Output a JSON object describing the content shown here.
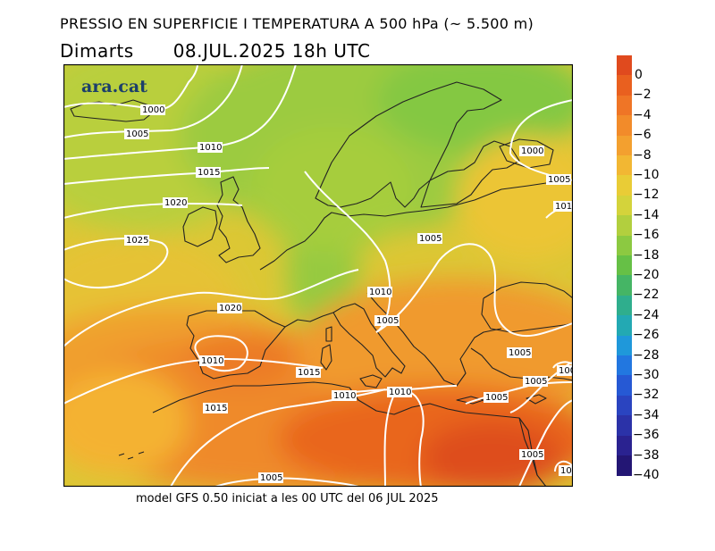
{
  "header": {
    "title": "PRESSIO EN SUPERFICIE I TEMPERATURA A 500 hPa (~ 5.500 m)",
    "day": "Dimarts",
    "datetime": "08.JUL.2025 18h UTC"
  },
  "logo": "ara.cat",
  "footer": "model GFS 0.50 iniciat a les 00 UTC del 06 JUL 2025",
  "legend": {
    "unit_levels": [
      {
        "label": "0",
        "color": "#e04a1e"
      },
      {
        "label": "−2",
        "color": "#e9601f"
      },
      {
        "label": "−4",
        "color": "#ef7526"
      },
      {
        "label": "−6",
        "color": "#f28b2a"
      },
      {
        "label": "−8",
        "color": "#f3a02f"
      },
      {
        "label": "−10",
        "color": "#f2b733"
      },
      {
        "label": "−12",
        "color": "#e9cc36"
      },
      {
        "label": "−14",
        "color": "#d4d33b"
      },
      {
        "label": "−16",
        "color": "#b2cf3e"
      },
      {
        "label": "−18",
        "color": "#8cc941"
      },
      {
        "label": "−20",
        "color": "#66c046"
      },
      {
        "label": "−22",
        "color": "#45b565"
      },
      {
        "label": "−24",
        "color": "#2fae8d"
      },
      {
        "label": "−26",
        "color": "#23a9b3"
      },
      {
        "label": "−28",
        "color": "#1f98da"
      },
      {
        "label": "−30",
        "color": "#2277e0"
      },
      {
        "label": "−32",
        "color": "#2659d4"
      },
      {
        "label": "−34",
        "color": "#2a44c0"
      },
      {
        "label": "−36",
        "color": "#2b32a8"
      },
      {
        "label": "−38",
        "color": "#2a2290"
      },
      {
        "label": "−40",
        "color": "#231674"
      }
    ]
  },
  "isobar_labels": [
    "1000",
    "1005",
    "1010",
    "1015",
    "1020",
    "1025",
    "1020",
    "1010",
    "1015",
    "1010",
    "1015",
    "1005",
    "1010",
    "1005",
    "1005",
    "1010",
    "1005",
    "1000",
    "1005",
    "101",
    "1005",
    "1005",
    "100",
    "1005",
    "10"
  ]
}
